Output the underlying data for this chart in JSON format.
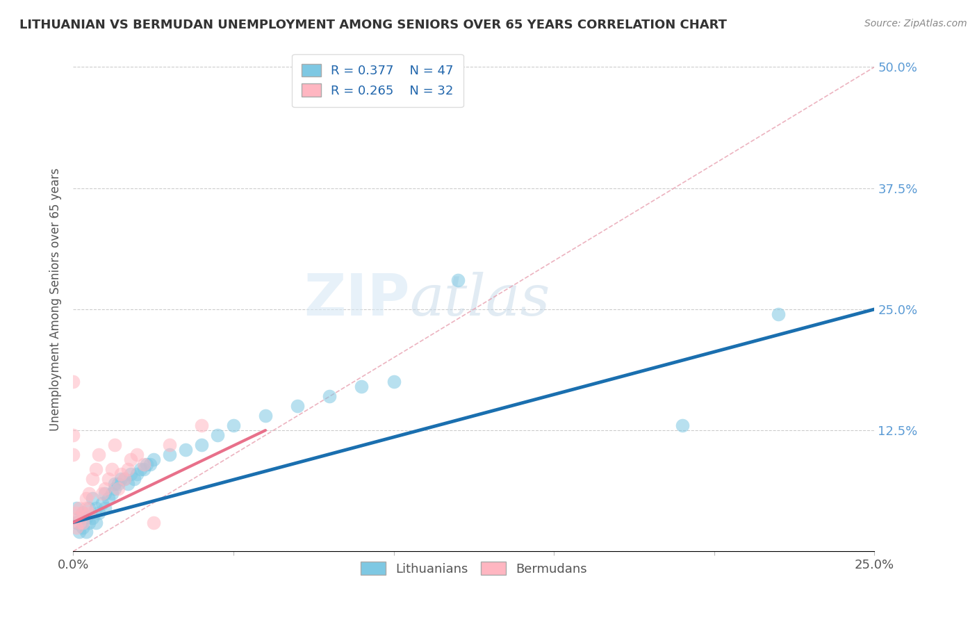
{
  "title": "LITHUANIAN VS BERMUDAN UNEMPLOYMENT AMONG SENIORS OVER 65 YEARS CORRELATION CHART",
  "source": "Source: ZipAtlas.com",
  "ylabel": "Unemployment Among Seniors over 65 years",
  "xlim": [
    0.0,
    0.25
  ],
  "ylim": [
    0.0,
    0.52
  ],
  "R_lithuanian": 0.377,
  "N_lithuanian": 47,
  "R_bermudan": 0.265,
  "N_bermudan": 32,
  "color_lithuanian": "#7ec8e3",
  "color_bermudan": "#ffb6c1",
  "color_trend_lithuanian": "#1a6faf",
  "color_trend_bermudan": "#e8708a",
  "color_diag": "#e8a0b0",
  "watermark_zip": "ZIP",
  "watermark_atlas": "atlas",
  "trend_lith_x0": 0.0,
  "trend_lith_y0": 0.03,
  "trend_lith_x1": 0.25,
  "trend_lith_y1": 0.25,
  "trend_berm_x0": 0.0,
  "trend_berm_y0": 0.03,
  "trend_berm_x1": 0.06,
  "trend_berm_y1": 0.125,
  "lithuanian_x": [
    0.001,
    0.001,
    0.002,
    0.002,
    0.003,
    0.003,
    0.004,
    0.004,
    0.005,
    0.005,
    0.006,
    0.006,
    0.007,
    0.007,
    0.008,
    0.009,
    0.01,
    0.01,
    0.011,
    0.012,
    0.013,
    0.013,
    0.014,
    0.015,
    0.016,
    0.017,
    0.018,
    0.019,
    0.02,
    0.021,
    0.022,
    0.023,
    0.024,
    0.025,
    0.03,
    0.035,
    0.04,
    0.045,
    0.05,
    0.06,
    0.07,
    0.08,
    0.09,
    0.1,
    0.12,
    0.19,
    0.22
  ],
  "lithuanian_y": [
    0.03,
    0.045,
    0.02,
    0.035,
    0.025,
    0.04,
    0.02,
    0.035,
    0.03,
    0.045,
    0.035,
    0.055,
    0.03,
    0.045,
    0.04,
    0.05,
    0.045,
    0.06,
    0.055,
    0.06,
    0.065,
    0.07,
    0.07,
    0.075,
    0.075,
    0.07,
    0.08,
    0.075,
    0.08,
    0.085,
    0.085,
    0.09,
    0.09,
    0.095,
    0.1,
    0.105,
    0.11,
    0.12,
    0.13,
    0.14,
    0.15,
    0.16,
    0.17,
    0.175,
    0.28,
    0.13,
    0.245
  ],
  "bermudan_x": [
    0.0,
    0.0,
    0.0,
    0.001,
    0.001,
    0.001,
    0.002,
    0.002,
    0.003,
    0.003,
    0.004,
    0.004,
    0.005,
    0.005,
    0.006,
    0.007,
    0.008,
    0.009,
    0.01,
    0.011,
    0.012,
    0.013,
    0.014,
    0.015,
    0.016,
    0.017,
    0.018,
    0.02,
    0.022,
    0.025,
    0.03,
    0.04
  ],
  "bermudan_y": [
    0.175,
    0.12,
    0.1,
    0.025,
    0.035,
    0.04,
    0.03,
    0.045,
    0.03,
    0.04,
    0.045,
    0.055,
    0.04,
    0.06,
    0.075,
    0.085,
    0.1,
    0.06,
    0.065,
    0.075,
    0.085,
    0.11,
    0.065,
    0.08,
    0.075,
    0.085,
    0.095,
    0.1,
    0.09,
    0.03,
    0.11,
    0.13
  ]
}
